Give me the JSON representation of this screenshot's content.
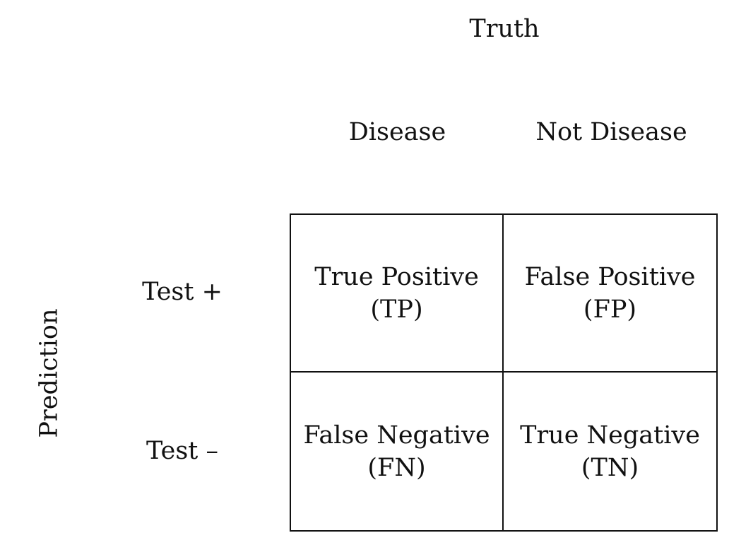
{
  "truth_label": "Truth",
  "prediction_label": "Prediction",
  "columns": [
    "Disease",
    "Not Disease"
  ],
  "rows": [
    "Test +",
    "Test –"
  ],
  "cells": [
    [
      {
        "name": "True Positive",
        "abbr": "(TP)"
      },
      {
        "name": "False Positive",
        "abbr": "(FP)"
      }
    ],
    [
      {
        "name": "False Negative",
        "abbr": "(FN)"
      },
      {
        "name": "True Negative",
        "abbr": "(TN)"
      }
    ]
  ]
}
